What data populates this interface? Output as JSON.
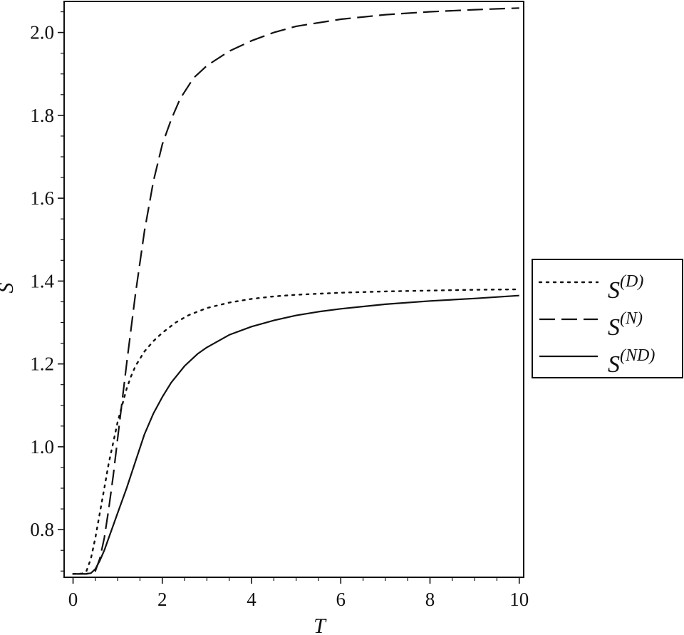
{
  "chart_data": {
    "type": "line",
    "xlabel": "T",
    "ylabel": "S",
    "xlim": [
      -0.2,
      10.1
    ],
    "ylim": [
      0.685,
      2.075
    ],
    "xticks": [
      0,
      2,
      4,
      6,
      8,
      10
    ],
    "xtick_labels": [
      "0",
      "2",
      "4",
      "6",
      "8",
      "10"
    ],
    "yticks": [
      0.8,
      1.0,
      1.2,
      1.4,
      1.6,
      1.8,
      2.0
    ],
    "ytick_labels": [
      "0.8",
      "1.0",
      "1.2",
      "1.4",
      "1.6",
      "1.8",
      "2.0"
    ],
    "grid": false,
    "legend_position": "right",
    "series": [
      {
        "name": "S",
        "sup": "(D)",
        "style": "dotted",
        "color": "#111111",
        "x": [
          0.0,
          0.2,
          0.3,
          0.4,
          0.5,
          0.6,
          0.7,
          0.8,
          0.9,
          1.0,
          1.1,
          1.2,
          1.3,
          1.4,
          1.6,
          1.8,
          2.0,
          2.3,
          2.6,
          3.0,
          3.5,
          4.0,
          4.5,
          5.0,
          6.0,
          7.0,
          8.0,
          9.0,
          10.0
        ],
        "y": [
          0.693,
          0.694,
          0.7,
          0.73,
          0.78,
          0.84,
          0.9,
          0.96,
          1.01,
          1.06,
          1.1,
          1.14,
          1.17,
          1.195,
          1.23,
          1.255,
          1.275,
          1.3,
          1.318,
          1.335,
          1.348,
          1.357,
          1.363,
          1.367,
          1.372,
          1.375,
          1.377,
          1.379,
          1.38
        ]
      },
      {
        "name": "S",
        "sup": "(N)",
        "style": "dashed",
        "color": "#111111",
        "x": [
          0.0,
          0.3,
          0.5,
          0.6,
          0.7,
          0.8,
          0.9,
          1.0,
          1.1,
          1.2,
          1.4,
          1.6,
          1.8,
          2.0,
          2.2,
          2.4,
          2.7,
          3.0,
          3.5,
          4.0,
          4.5,
          5.0,
          6.0,
          7.0,
          8.0,
          9.0,
          10.0
        ],
        "y": [
          0.693,
          0.693,
          0.7,
          0.73,
          0.78,
          0.85,
          0.93,
          1.02,
          1.11,
          1.2,
          1.37,
          1.52,
          1.64,
          1.73,
          1.79,
          1.84,
          1.89,
          1.92,
          1.955,
          1.98,
          2.0,
          2.015,
          2.032,
          2.043,
          2.05,
          2.055,
          2.059
        ]
      },
      {
        "name": "S",
        "sup": "(ND)",
        "style": "solid",
        "color": "#111111",
        "x": [
          0.0,
          0.3,
          0.4,
          0.5,
          0.6,
          0.7,
          0.8,
          0.9,
          1.0,
          1.2,
          1.4,
          1.6,
          1.8,
          2.0,
          2.2,
          2.5,
          2.8,
          3.0,
          3.5,
          4.0,
          4.5,
          5.0,
          5.5,
          6.0,
          7.0,
          8.0,
          9.0,
          10.0
        ],
        "y": [
          0.693,
          0.693,
          0.695,
          0.705,
          0.725,
          0.75,
          0.78,
          0.81,
          0.84,
          0.9,
          0.965,
          1.03,
          1.08,
          1.12,
          1.155,
          1.195,
          1.225,
          1.24,
          1.27,
          1.29,
          1.305,
          1.317,
          1.326,
          1.333,
          1.344,
          1.352,
          1.358,
          1.365
        ]
      }
    ]
  }
}
